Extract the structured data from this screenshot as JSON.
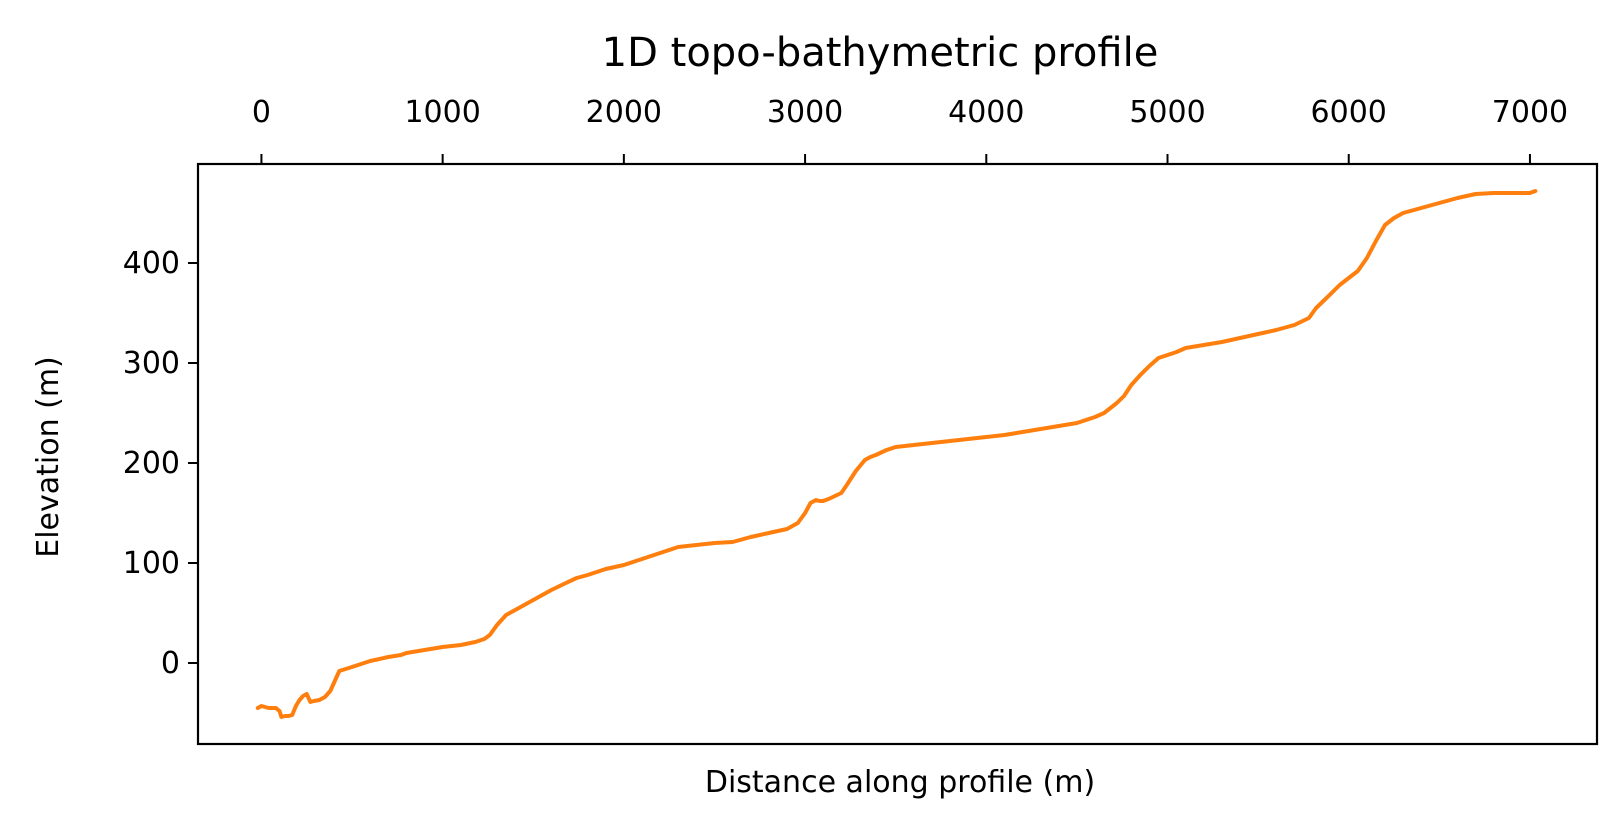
{
  "chart_data": {
    "type": "line",
    "title": "1D topo-bathymetric profile",
    "xlabel": "Distance along profile (m)",
    "ylabel": "Elevation (m)",
    "xlim": [
      -350,
      7370
    ],
    "ylim": [
      -81,
      499
    ],
    "x_ticks": [
      0,
      1000,
      2000,
      3000,
      4000,
      5000,
      6000,
      7000
    ],
    "x_tick_labels": [
      "0",
      "1000",
      "2000",
      "3000",
      "4000",
      "5000",
      "6000",
      "7000"
    ],
    "x_axis_position": "top",
    "y_ticks": [
      0,
      100,
      200,
      300,
      400
    ],
    "y_tick_labels": [
      "0",
      "100",
      "200",
      "300",
      "400"
    ],
    "grid": false,
    "legend": "none",
    "colors": {
      "line": "#ff7f0e",
      "axes": "#000000"
    },
    "series": [
      {
        "x": [
          -20,
          0,
          40,
          80,
          100,
          110,
          130,
          150,
          170,
          190,
          210,
          230,
          250,
          270,
          290,
          320,
          350,
          380,
          400,
          430,
          500,
          600,
          700,
          770,
          800,
          900,
          1000,
          1100,
          1180,
          1230,
          1260,
          1300,
          1350,
          1420,
          1470,
          1520,
          1600,
          1680,
          1740,
          1800,
          1900,
          2000,
          2100,
          2200,
          2300,
          2400,
          2500,
          2600,
          2700,
          2800,
          2900,
          2960,
          3000,
          3030,
          3060,
          3080,
          3100,
          3130,
          3200,
          3230,
          3280,
          3330,
          3360,
          3390,
          3450,
          3500,
          3600,
          3700,
          3800,
          3900,
          4000,
          4100,
          4200,
          4300,
          4400,
          4500,
          4600,
          4650,
          4720,
          4760,
          4800,
          4850,
          4900,
          4950,
          5000,
          5050,
          5100,
          5200,
          5300,
          5400,
          5500,
          5600,
          5700,
          5780,
          5820,
          5860,
          5900,
          5950,
          6000,
          6050,
          6100,
          6150,
          6200,
          6250,
          6300,
          6400,
          6500,
          6600,
          6700,
          6800,
          6900,
          6970,
          7000,
          7030
        ],
        "y": [
          -45,
          -43,
          -45,
          -45,
          -48,
          -54,
          -53,
          -53,
          -52,
          -43,
          -37,
          -33,
          -31,
          -39,
          -38,
          -37,
          -34,
          -28,
          -20,
          -8,
          -4,
          2,
          6,
          8,
          10,
          13,
          16,
          18,
          21,
          24,
          28,
          38,
          48,
          55,
          60,
          65,
          73,
          80,
          85,
          88,
          94,
          98,
          104,
          110,
          116,
          118,
          120,
          121,
          126,
          130,
          134,
          140,
          150,
          160,
          163,
          162,
          162,
          164,
          170,
          178,
          192,
          203,
          206,
          208,
          213,
          216,
          218,
          220,
          222,
          224,
          226,
          228,
          231,
          234,
          237,
          240,
          246,
          250,
          260,
          267,
          278,
          288,
          297,
          305,
          308,
          311,
          315,
          318,
          321,
          325,
          329,
          333,
          338,
          345,
          355,
          362,
          369,
          378,
          385,
          392,
          405,
          422,
          438,
          445,
          450,
          455,
          460,
          465,
          469,
          470,
          470,
          470,
          470,
          472
        ]
      }
    ]
  }
}
